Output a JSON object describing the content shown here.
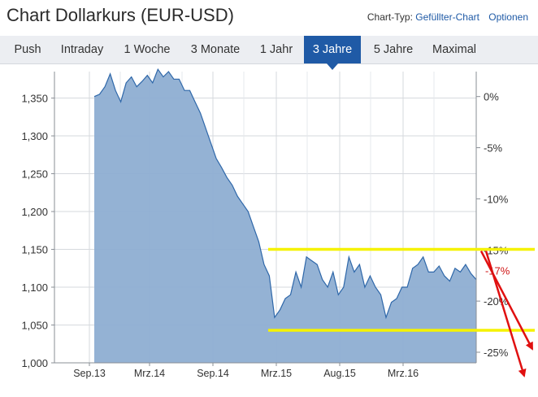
{
  "header": {
    "title": "Chart Dollarkurs (EUR-USD)",
    "chart_type_label": "Chart-Typ:",
    "chart_type_value": "Gefüllter-Chart",
    "options_label": "Optionen"
  },
  "tabs": [
    {
      "label": "Push",
      "active": false
    },
    {
      "label": "Intraday",
      "active": false
    },
    {
      "label": "1 Woche",
      "active": false
    },
    {
      "label": "3 Monate",
      "active": false
    },
    {
      "label": "1 Jahr",
      "active": false
    },
    {
      "label": "3 Jahre",
      "active": true
    },
    {
      "label": "5 Jahre",
      "active": false
    },
    {
      "label": "Maximal",
      "active": false
    }
  ],
  "colors": {
    "accent": "#1f5aa6",
    "area_fill": "#8eaed2",
    "area_line": "#2e67a9",
    "highlight": "#f5f200",
    "arrow": "#e01010",
    "annotation_text": "#d01515"
  },
  "chart_data": {
    "type": "area",
    "title": "",
    "xlabel": "",
    "ylabel": "",
    "x_ticks": [
      "Sep.13",
      "Mrz.14",
      "Sep.14",
      "Mrz.15",
      "Aug.15",
      "Mrz.16"
    ],
    "y_ticks": [
      "1,350",
      "1,300",
      "1,250",
      "1,200",
      "1,150",
      "1,100",
      "1,050",
      "1,000"
    ],
    "y_tick_values": [
      1.35,
      1.3,
      1.25,
      1.2,
      1.15,
      1.1,
      1.05,
      1.0
    ],
    "ylim": [
      1.0,
      1.385
    ],
    "right_ticks": [
      "0%",
      "-5%",
      "-10%",
      "-15%",
      "-20%",
      "-25%"
    ],
    "right_tick_values": [
      0,
      -5,
      -10,
      -15,
      -20,
      -25
    ],
    "grid": true,
    "series": [
      {
        "x_months": [
          0,
          0.5,
          1,
          1.5,
          2,
          2.5,
          3,
          3.5,
          4,
          4.5,
          5,
          5.5,
          6,
          6.5,
          7,
          7.5,
          8,
          8.5,
          9,
          9.5,
          10,
          10.5,
          11,
          11.5,
          12,
          12.5,
          13,
          13.5,
          14,
          14.5,
          15,
          15.5,
          16,
          16.5,
          17,
          17.5,
          18,
          18.5,
          19,
          19.5,
          20,
          20.5,
          21,
          21.5,
          22,
          22.5,
          23,
          23.5,
          24,
          24.5,
          25,
          25.5,
          26,
          26.5,
          27,
          27.5,
          28,
          28.5,
          29,
          29.5,
          30,
          30.5,
          31,
          31.5,
          32,
          32.5,
          33,
          33.5,
          34,
          34.5,
          35,
          35.5,
          36
        ],
        "values": [
          1.352,
          1.355,
          1.365,
          1.382,
          1.36,
          1.345,
          1.37,
          1.378,
          1.365,
          1.372,
          1.38,
          1.37,
          1.388,
          1.378,
          1.385,
          1.375,
          1.375,
          1.36,
          1.36,
          1.345,
          1.33,
          1.31,
          1.29,
          1.27,
          1.258,
          1.245,
          1.235,
          1.22,
          1.21,
          1.2,
          1.18,
          1.16,
          1.13,
          1.115,
          1.06,
          1.07,
          1.085,
          1.09,
          1.12,
          1.1,
          1.14,
          1.135,
          1.13,
          1.11,
          1.1,
          1.12,
          1.09,
          1.1,
          1.14,
          1.12,
          1.13,
          1.1,
          1.115,
          1.1,
          1.09,
          1.06,
          1.08,
          1.085,
          1.1,
          1.1,
          1.125,
          1.13,
          1.14,
          1.12,
          1.12,
          1.128,
          1.115,
          1.108,
          1.125,
          1.12,
          1.13,
          1.118,
          1.11
        ]
      }
    ],
    "annotations": [
      {
        "text": "-17%",
        "value_percent": -17
      }
    ]
  }
}
